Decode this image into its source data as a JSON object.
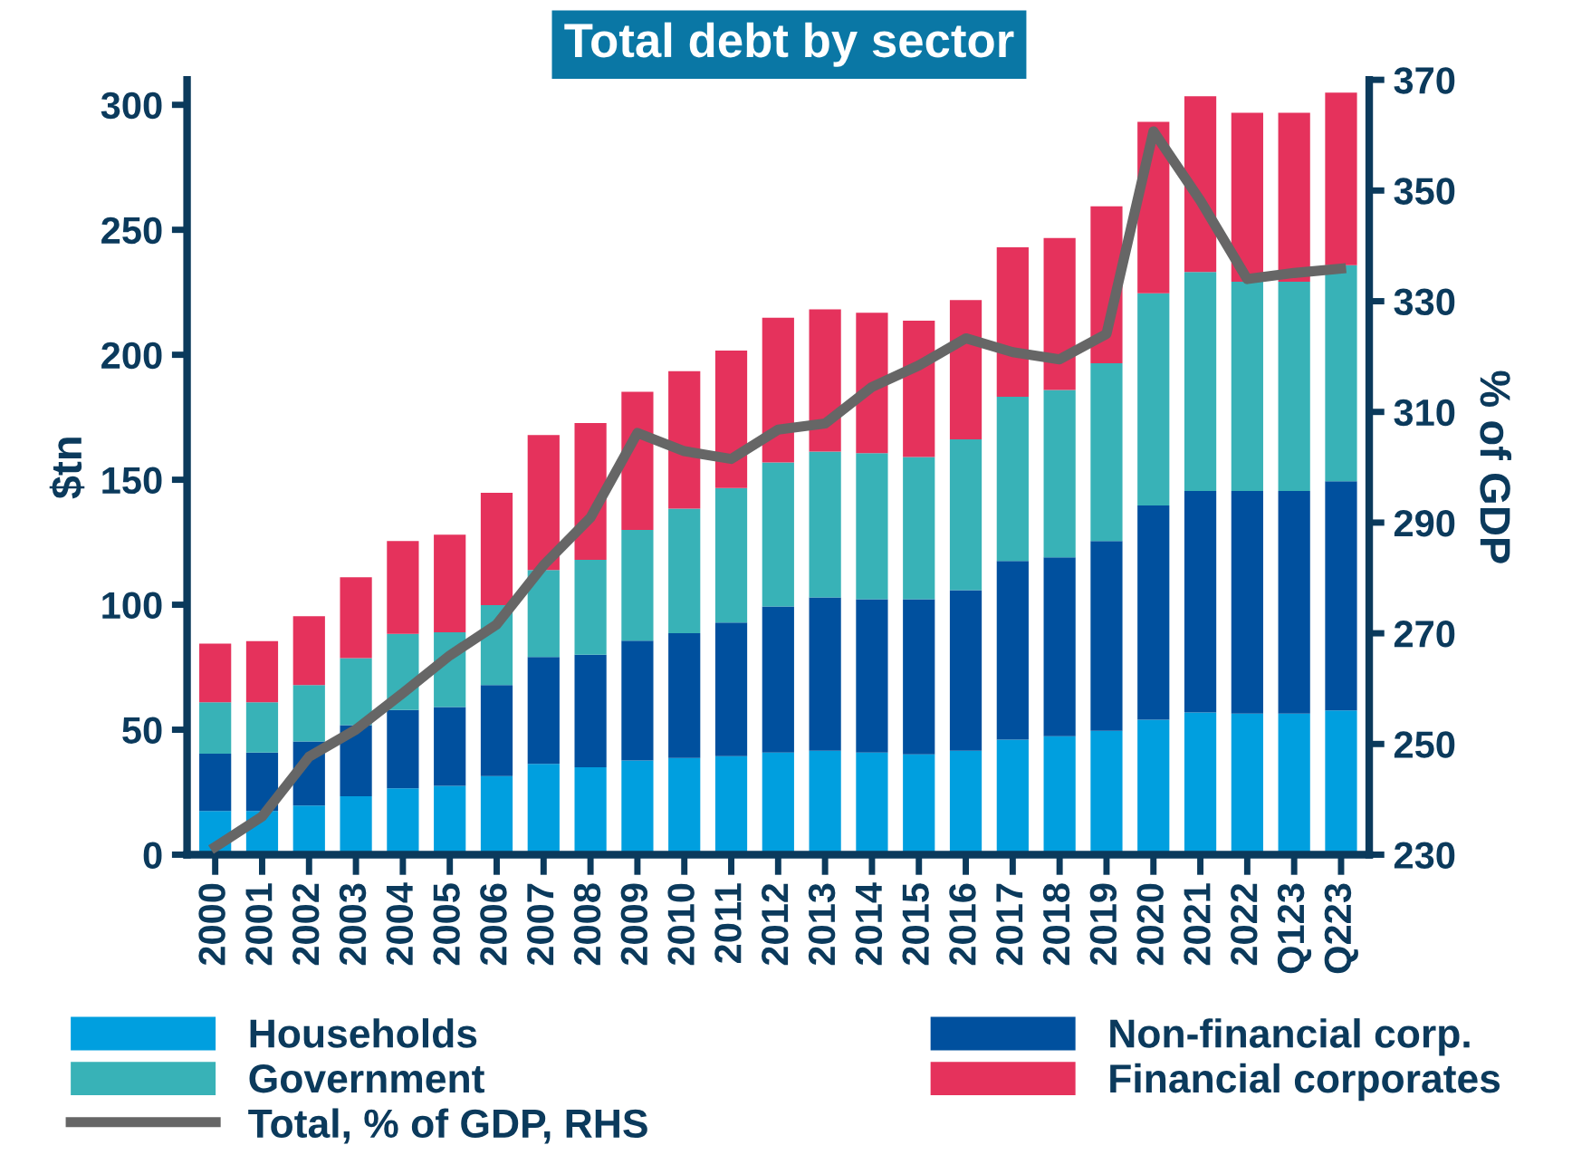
{
  "chart_data": {
    "type": "bar",
    "stacked": true,
    "title": "Total debt by sector",
    "ylabel": "$tn",
    "y2label": "% of GDP",
    "categories": [
      "2000",
      "2001",
      "2002",
      "2003",
      "2004",
      "2005",
      "2006",
      "2007",
      "2008",
      "2009",
      "2010",
      "2011",
      "2012",
      "2013",
      "2014",
      "2015",
      "2016",
      "2017",
      "2018",
      "2019",
      "2020",
      "2021",
      "2022",
      "Q123",
      "Q223"
    ],
    "series": [
      {
        "name": "Households",
        "color": "#009fdf",
        "values": [
          17.5,
          17.5,
          19.7,
          23.4,
          26.5,
          27.5,
          31.4,
          36.3,
          35,
          37.7,
          38.7,
          39.4,
          40.9,
          41.6,
          40.9,
          40.1,
          41.6,
          46,
          47.4,
          49.6,
          54,
          56.9,
          56.4,
          56.4,
          57.7
        ]
      },
      {
        "name": "Non-financial corp.",
        "color": "#00509e",
        "values": [
          22.9,
          23.4,
          25.6,
          28.4,
          31.4,
          31.6,
          36.5,
          42.8,
          45,
          47.9,
          49.9,
          53.5,
          58.4,
          61.3,
          61.3,
          62.1,
          64.2,
          71.5,
          71.6,
          75.9,
          85.7,
          88.6,
          89.1,
          89.1,
          91.7
        ]
      },
      {
        "name": "Government",
        "color": "#38b2b7",
        "values": [
          20.6,
          20.1,
          22.6,
          26.8,
          30.4,
          29.9,
          31.9,
          34.8,
          38,
          44.3,
          49.8,
          53.8,
          57.6,
          58.4,
          58.4,
          56.9,
          60.4,
          65.7,
          66.9,
          71.1,
          84.9,
          87.6,
          83.7,
          83.7,
          86.4
        ]
      },
      {
        "name": "Financial corporates",
        "color": "#e5325c",
        "values": [
          23.4,
          24.4,
          27.5,
          32.4,
          37.2,
          39,
          45,
          54,
          54.7,
          55.3,
          55,
          55,
          57.9,
          56.9,
          56.2,
          54.5,
          55.7,
          59.8,
          60.8,
          62.8,
          68.6,
          70.3,
          67.6,
          67.6,
          69.1
        ]
      },
      {
        "name": "Total, % of GDP, RHS",
        "type": "line",
        "axis": "y2",
        "color": "#666666",
        "values": [
          231.4,
          236.9,
          247.7,
          252.6,
          259.2,
          266,
          271.6,
          282.3,
          290.9,
          306.2,
          302.9,
          301.5,
          306.8,
          307.9,
          314.5,
          318.4,
          323.3,
          320.8,
          319.5,
          324.1,
          360.7,
          348.2,
          334,
          335.1,
          335.9
        ]
      }
    ],
    "ylim": [
      0,
      310
    ],
    "yticks": [
      0,
      50,
      100,
      150,
      200,
      250,
      300
    ],
    "y2lim": [
      230,
      370
    ],
    "y2ticks": [
      230,
      250,
      270,
      290,
      310,
      330,
      350,
      370
    ],
    "grid": false,
    "legend": "bottom",
    "marker": "none",
    "line_style": "solid"
  }
}
